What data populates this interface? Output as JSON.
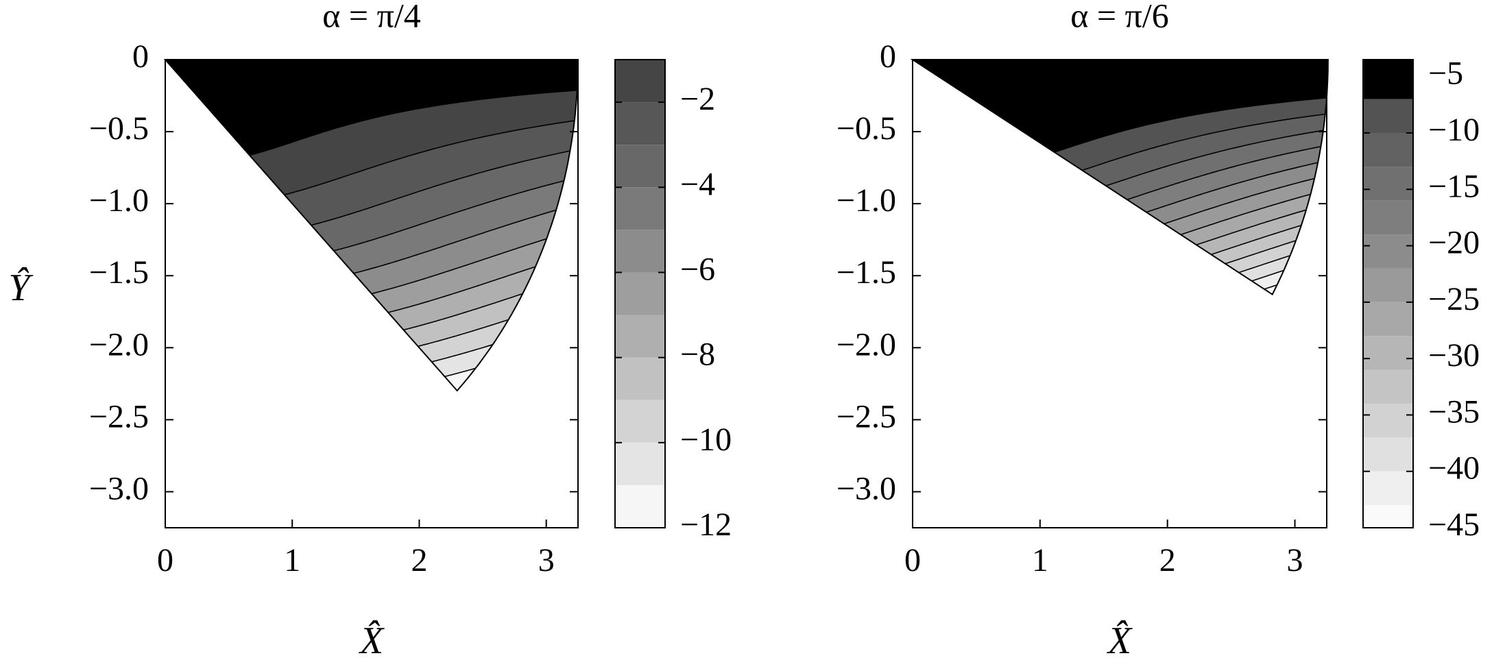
{
  "chart_data": [
    {
      "type": "contour",
      "title": "α = π/4",
      "x_label": "X̂",
      "y_label": "Ŷ",
      "xlim": [
        0,
        3.25
      ],
      "ylim": [
        -3.25,
        0
      ],
      "xticks": [
        0,
        1,
        2,
        3
      ],
      "yticks": [
        0,
        {
          "value": -0.5,
          "label": "−0.5"
        },
        {
          "value": -1.0,
          "label": "−1.0"
        },
        {
          "value": -1.5,
          "label": "−1.5"
        },
        {
          "value": -2.0,
          "label": "−2.0"
        },
        {
          "value": -2.5,
          "label": "−2.5"
        },
        {
          "value": -3.0,
          "label": "−3.0"
        }
      ],
      "sector": {
        "radius": 3.25,
        "angle": 0.7854
      },
      "levels": [
        -1,
        -2,
        -3,
        -4,
        -5,
        -6,
        -7,
        -8,
        -9,
        -10,
        -11
      ],
      "clim": [
        -12,
        -1
      ],
      "cticks": [
        {
          "value": -2,
          "label": "−2"
        },
        {
          "value": -4,
          "label": "−4"
        },
        {
          "value": -6,
          "label": "−6"
        },
        {
          "value": -8,
          "label": "−8"
        },
        {
          "value": -10,
          "label": "−10"
        },
        {
          "value": -12,
          "label": "−12"
        }
      ]
    },
    {
      "type": "contour",
      "title": "α = π/6",
      "x_label": "X̂",
      "xlim": [
        0,
        3.25
      ],
      "ylim": [
        -3.25,
        0
      ],
      "xticks": [
        0,
        1,
        2,
        3
      ],
      "yticks": [
        0,
        {
          "value": -0.5,
          "label": "−0.5"
        },
        {
          "value": -1.0,
          "label": "−1.0"
        },
        {
          "value": -1.5,
          "label": "−1.5"
        },
        {
          "value": -2.0,
          "label": "−2.0"
        },
        {
          "value": -2.5,
          "label": "−2.5"
        },
        {
          "value": -3.0,
          "label": "−3.0"
        }
      ],
      "sector": {
        "radius": 3.26,
        "angle": 0.5236
      },
      "levels": [
        -7,
        -10,
        -13,
        -16,
        -19,
        -22,
        -25,
        -28,
        -31,
        -34,
        -37,
        -40,
        -43
      ],
      "clim": [
        -45,
        -3.5
      ],
      "cticks": [
        {
          "value": -5,
          "label": "−5"
        },
        {
          "value": -10,
          "label": "−10"
        },
        {
          "value": -15,
          "label": "−15"
        },
        {
          "value": -20,
          "label": "−20"
        },
        {
          "value": -25,
          "label": "−25"
        },
        {
          "value": -30,
          "label": "−30"
        },
        {
          "value": -35,
          "label": "−35"
        },
        {
          "value": -40,
          "label": "−40"
        },
        {
          "value": -45,
          "label": "−45"
        }
      ]
    }
  ]
}
